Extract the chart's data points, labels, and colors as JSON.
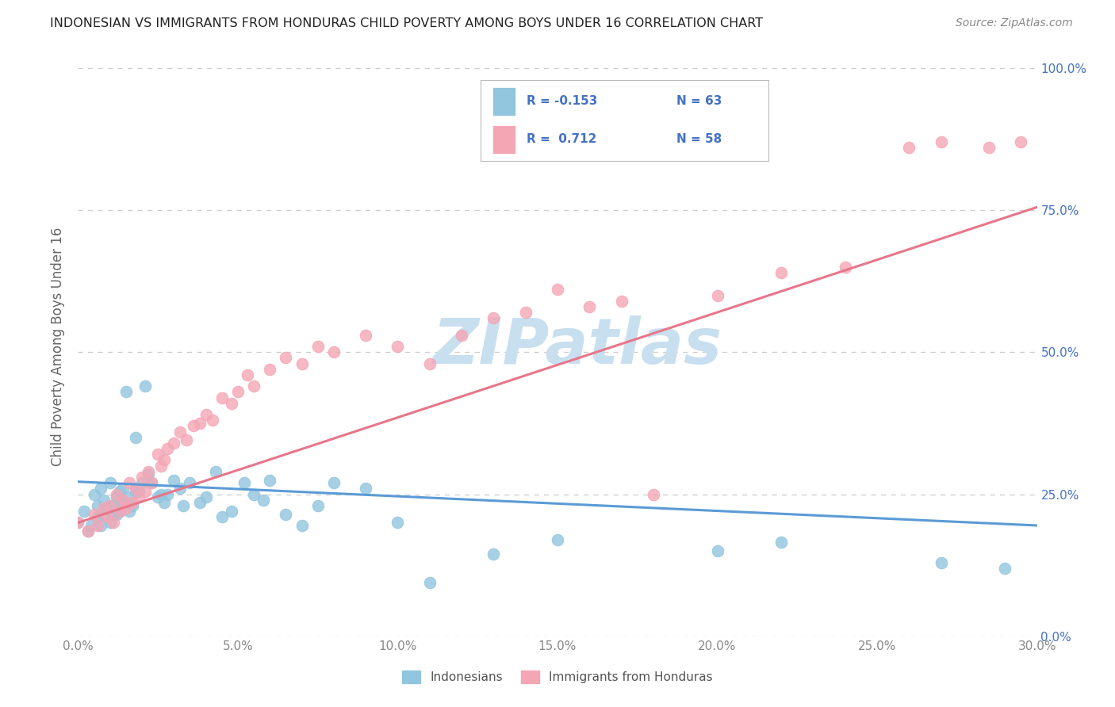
{
  "title": "INDONESIAN VS IMMIGRANTS FROM HONDURAS CHILD POVERTY AMONG BOYS UNDER 16 CORRELATION CHART",
  "source": "Source: ZipAtlas.com",
  "ylabel": "Child Poverty Among Boys Under 16",
  "xmin": 0.0,
  "xmax": 0.3,
  "ymin": 0.0,
  "ymax": 1.0,
  "blue_color": "#92C5DE",
  "pink_color": "#F4A6B5",
  "blue_line_color": "#5B9BD5",
  "pink_line_color": "#E8768A",
  "legend_text_color": "#4472C4",
  "legend_n_color": "#333333",
  "watermark_color": "#C8DFF0",
  "grid_color": "#CCCCCC",
  "right_axis_color": "#4472C4",
  "tick_color": "#888888",
  "ylabel_color": "#666666",
  "title_color": "#222222",
  "source_color": "#888888",
  "indonesian_x": [
    0.0,
    0.002,
    0.003,
    0.004,
    0.005,
    0.006,
    0.006,
    0.007,
    0.007,
    0.008,
    0.008,
    0.009,
    0.01,
    0.01,
    0.011,
    0.011,
    0.012,
    0.012,
    0.013,
    0.013,
    0.014,
    0.014,
    0.015,
    0.016,
    0.016,
    0.017,
    0.018,
    0.018,
    0.019,
    0.02,
    0.021,
    0.022,
    0.023,
    0.025,
    0.026,
    0.027,
    0.028,
    0.03,
    0.032,
    0.033,
    0.035,
    0.038,
    0.04,
    0.043,
    0.045,
    0.048,
    0.052,
    0.055,
    0.058,
    0.06,
    0.065,
    0.07,
    0.075,
    0.08,
    0.09,
    0.1,
    0.11,
    0.13,
    0.15,
    0.2,
    0.22,
    0.27,
    0.29
  ],
  "indonesian_y": [
    0.2,
    0.22,
    0.185,
    0.195,
    0.25,
    0.23,
    0.21,
    0.195,
    0.26,
    0.215,
    0.24,
    0.225,
    0.2,
    0.27,
    0.215,
    0.23,
    0.245,
    0.215,
    0.255,
    0.22,
    0.235,
    0.26,
    0.43,
    0.245,
    0.22,
    0.23,
    0.255,
    0.35,
    0.255,
    0.27,
    0.44,
    0.285,
    0.27,
    0.245,
    0.25,
    0.235,
    0.25,
    0.275,
    0.26,
    0.23,
    0.27,
    0.235,
    0.245,
    0.29,
    0.21,
    0.22,
    0.27,
    0.25,
    0.24,
    0.275,
    0.215,
    0.195,
    0.23,
    0.27,
    0.26,
    0.2,
    0.095,
    0.145,
    0.17,
    0.15,
    0.165,
    0.13,
    0.12
  ],
  "honduras_x": [
    0.0,
    0.003,
    0.005,
    0.006,
    0.008,
    0.009,
    0.01,
    0.011,
    0.012,
    0.013,
    0.014,
    0.015,
    0.016,
    0.017,
    0.018,
    0.019,
    0.02,
    0.021,
    0.022,
    0.023,
    0.025,
    0.026,
    0.027,
    0.028,
    0.03,
    0.032,
    0.034,
    0.036,
    0.038,
    0.04,
    0.042,
    0.045,
    0.048,
    0.05,
    0.053,
    0.055,
    0.06,
    0.065,
    0.07,
    0.075,
    0.08,
    0.09,
    0.1,
    0.11,
    0.12,
    0.13,
    0.14,
    0.15,
    0.16,
    0.17,
    0.18,
    0.2,
    0.22,
    0.24,
    0.26,
    0.27,
    0.285,
    0.295
  ],
  "honduras_y": [
    0.2,
    0.185,
    0.215,
    0.195,
    0.225,
    0.21,
    0.23,
    0.2,
    0.25,
    0.22,
    0.24,
    0.225,
    0.27,
    0.235,
    0.26,
    0.245,
    0.28,
    0.255,
    0.29,
    0.27,
    0.32,
    0.3,
    0.31,
    0.33,
    0.34,
    0.36,
    0.345,
    0.37,
    0.375,
    0.39,
    0.38,
    0.42,
    0.41,
    0.43,
    0.46,
    0.44,
    0.47,
    0.49,
    0.48,
    0.51,
    0.5,
    0.53,
    0.51,
    0.48,
    0.53,
    0.56,
    0.57,
    0.61,
    0.58,
    0.59,
    0.25,
    0.6,
    0.64,
    0.65,
    0.86,
    0.87,
    0.86,
    0.87
  ]
}
